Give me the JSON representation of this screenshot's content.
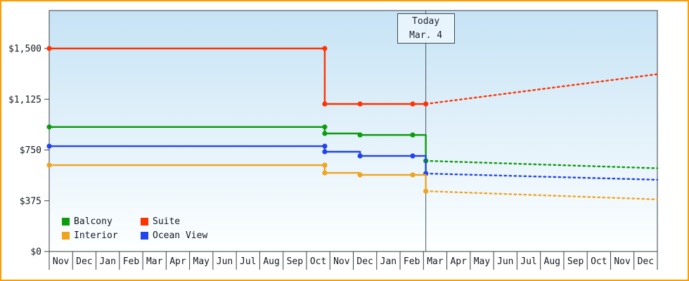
{
  "chart_data": {
    "type": "line",
    "title": "",
    "xlabel": "",
    "ylabel": "",
    "months": [
      "Nov",
      "Dec",
      "Jan",
      "Feb",
      "Mar",
      "Apr",
      "May",
      "Jun",
      "Jul",
      "Aug",
      "Sep",
      "Oct",
      "Nov",
      "Dec",
      "Jan",
      "Feb",
      "Mar",
      "Apr",
      "May",
      "Jun",
      "Jul",
      "Aug",
      "Sep",
      "Oct",
      "Nov",
      "Dec"
    ],
    "y_axis": {
      "ylim": [
        0,
        1500
      ],
      "ticks": [
        {
          "label": "$0",
          "value": 0
        },
        {
          "label": "$375",
          "value": 375
        },
        {
          "label": "$750",
          "value": 750
        },
        {
          "label": "$1,125",
          "value": 1125
        },
        {
          "label": "$1,500",
          "value": 1500
        }
      ]
    },
    "today": {
      "x": 16.1,
      "label_line1": "Today",
      "label_line2": "Mar. 4"
    },
    "series": [
      {
        "name": "Suite",
        "color": "#ff3300",
        "solid": [
          [
            0,
            1500
          ],
          [
            11.78,
            1500
          ],
          [
            11.78,
            1090
          ],
          [
            16.1,
            1090
          ]
        ],
        "dashed": [
          [
            16.1,
            1090
          ],
          [
            26,
            1310
          ]
        ],
        "markers": [
          [
            0,
            1500
          ],
          [
            11.78,
            1500
          ],
          [
            11.78,
            1090
          ],
          [
            13.29,
            1090
          ],
          [
            15.54,
            1090
          ],
          [
            16.1,
            1090
          ]
        ]
      },
      {
        "name": "Balcony",
        "color": "#0d9c0d",
        "solid": [
          [
            0,
            920
          ],
          [
            11.78,
            920
          ],
          [
            11.78,
            872
          ],
          [
            13.29,
            872
          ],
          [
            13.29,
            861
          ],
          [
            15.54,
            861
          ],
          [
            16.1,
            861
          ],
          [
            16.1,
            670
          ]
        ],
        "dashed": [
          [
            16.1,
            670
          ],
          [
            26,
            615
          ]
        ],
        "markers": [
          [
            0,
            920
          ],
          [
            11.78,
            920
          ],
          [
            11.78,
            872
          ],
          [
            13.29,
            861
          ],
          [
            15.54,
            861
          ],
          [
            16.1,
            670
          ]
        ]
      },
      {
        "name": "Ocean View",
        "color": "#2244ee",
        "solid": [
          [
            0,
            778
          ],
          [
            11.78,
            778
          ],
          [
            11.78,
            737
          ],
          [
            13.29,
            737
          ],
          [
            13.29,
            706
          ],
          [
            15.54,
            706
          ],
          [
            16.1,
            706
          ],
          [
            16.1,
            576
          ]
        ],
        "dashed": [
          [
            16.1,
            576
          ],
          [
            26,
            530
          ]
        ],
        "markers": [
          [
            0,
            778
          ],
          [
            11.78,
            778
          ],
          [
            11.78,
            737
          ],
          [
            13.29,
            706
          ],
          [
            15.54,
            706
          ],
          [
            16.1,
            576
          ]
        ]
      },
      {
        "name": "Interior",
        "color": "#f0a41e",
        "solid": [
          [
            0,
            638
          ],
          [
            11.78,
            638
          ],
          [
            11.78,
            581
          ],
          [
            13.29,
            581
          ],
          [
            13.29,
            566
          ],
          [
            15.54,
            566
          ],
          [
            16.1,
            566
          ],
          [
            16.1,
            446
          ]
        ],
        "dashed": [
          [
            16.1,
            446
          ],
          [
            26,
            385
          ]
        ],
        "markers": [
          [
            0,
            638
          ],
          [
            11.78,
            638
          ],
          [
            11.78,
            581
          ],
          [
            13.29,
            566
          ],
          [
            15.54,
            566
          ],
          [
            16.1,
            446
          ]
        ]
      }
    ],
    "legend": {
      "position": "bottom-left",
      "items": [
        {
          "label": "Balcony",
          "color": "#0d9c0d"
        },
        {
          "label": "Suite",
          "color": "#ff3300"
        },
        {
          "label": "Interior",
          "color": "#f0a41e"
        },
        {
          "label": "Ocean View",
          "color": "#2244ee"
        }
      ]
    },
    "frame_color": "#ff9c00",
    "grid": "off"
  }
}
